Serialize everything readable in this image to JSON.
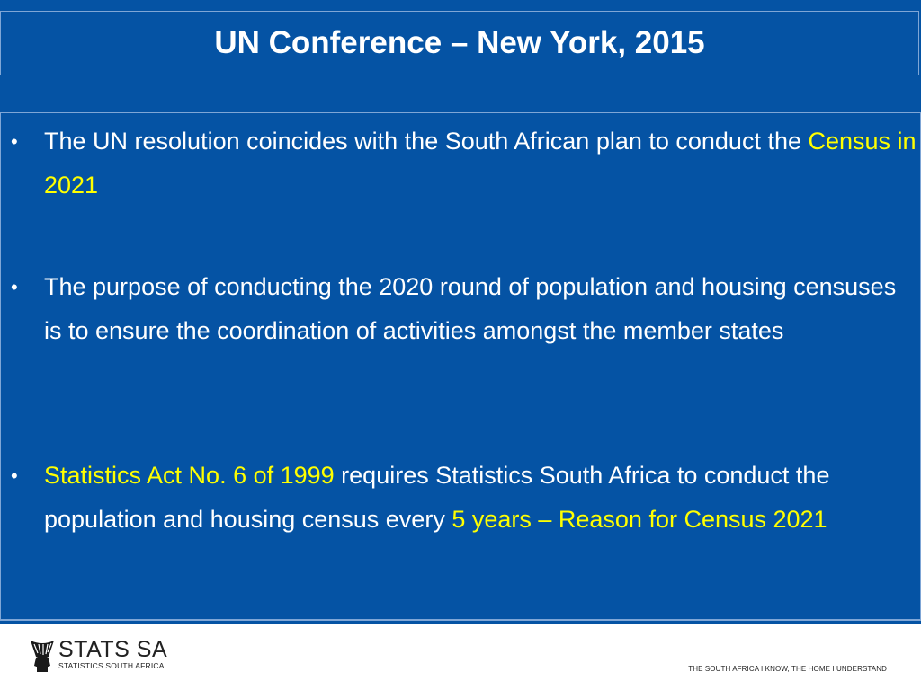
{
  "slide": {
    "title": "UN Conference – New York, 2015",
    "bullet_symbol": "•",
    "bullets": [
      {
        "part1": "The UN resolution coincides with the South African plan to conduct the ",
        "highlight": "Census in 2021"
      },
      {
        "text": "The purpose of conducting the 2020 round of population and housing censuses is to ensure the coordination of activities amongst the member states"
      },
      {
        "highlight1": "Statistics Act No. 6 of 1999",
        "part2": " requires Statistics South Africa to conduct the population and housing census every ",
        "highlight2": "5 years – Reason for Census 2021"
      }
    ]
  },
  "footer": {
    "logo_name": "STATS SA",
    "logo_subtitle": "STATISTICS SOUTH AFRICA",
    "tagline": "THE SOUTH AFRICA I KNOW, THE HOME I UNDERSTAND"
  },
  "colors": {
    "background": "#0553a4",
    "highlight": "#ffff00",
    "text": "#ffffff"
  }
}
